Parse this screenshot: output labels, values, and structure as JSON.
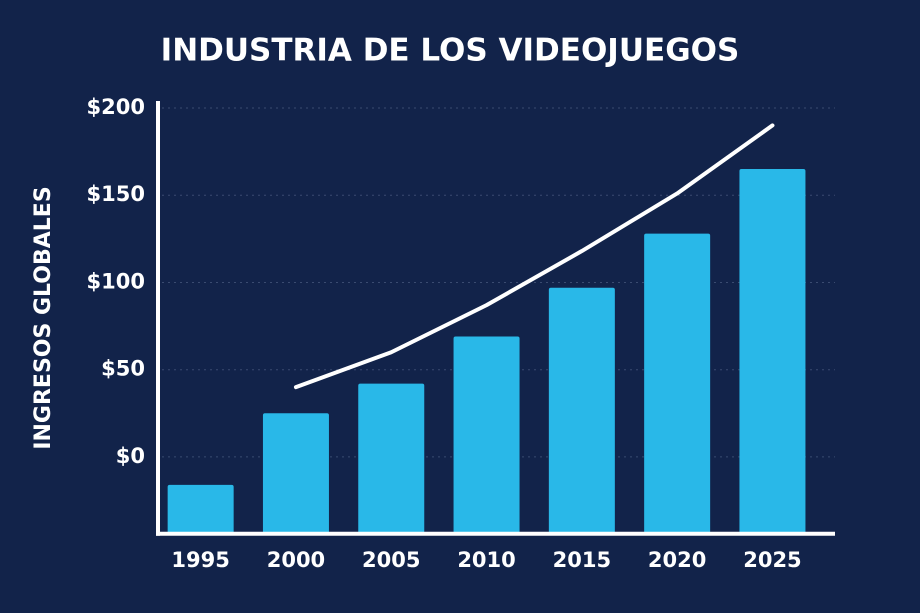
{
  "chart_data": {
    "type": "bar",
    "title": "INDUSTRIA DE LOS VIDEOJUEGOS",
    "y_label": "INGRESOS GLOBALES",
    "categories": [
      "1995",
      "2000",
      "2005",
      "2010",
      "2015",
      "2020",
      "2025"
    ],
    "series": [
      {
        "type": "bar",
        "color": "#29b8e8",
        "values": [
          -16,
          25,
          42,
          69,
          97,
          128,
          165
        ]
      },
      {
        "type": "line",
        "color": "#ffffff",
        "values": [
          null,
          40,
          60,
          87,
          118,
          151,
          190
        ]
      }
    ],
    "ylim": [
      -44,
      204
    ],
    "yticks": [
      {
        "value": 0,
        "label": "$0"
      },
      {
        "value": 50,
        "label": "$50"
      },
      {
        "value": 100,
        "label": "$100"
      },
      {
        "value": 150,
        "label": "$150"
      },
      {
        "value": 200,
        "label": "$200"
      }
    ],
    "grid": true
  }
}
